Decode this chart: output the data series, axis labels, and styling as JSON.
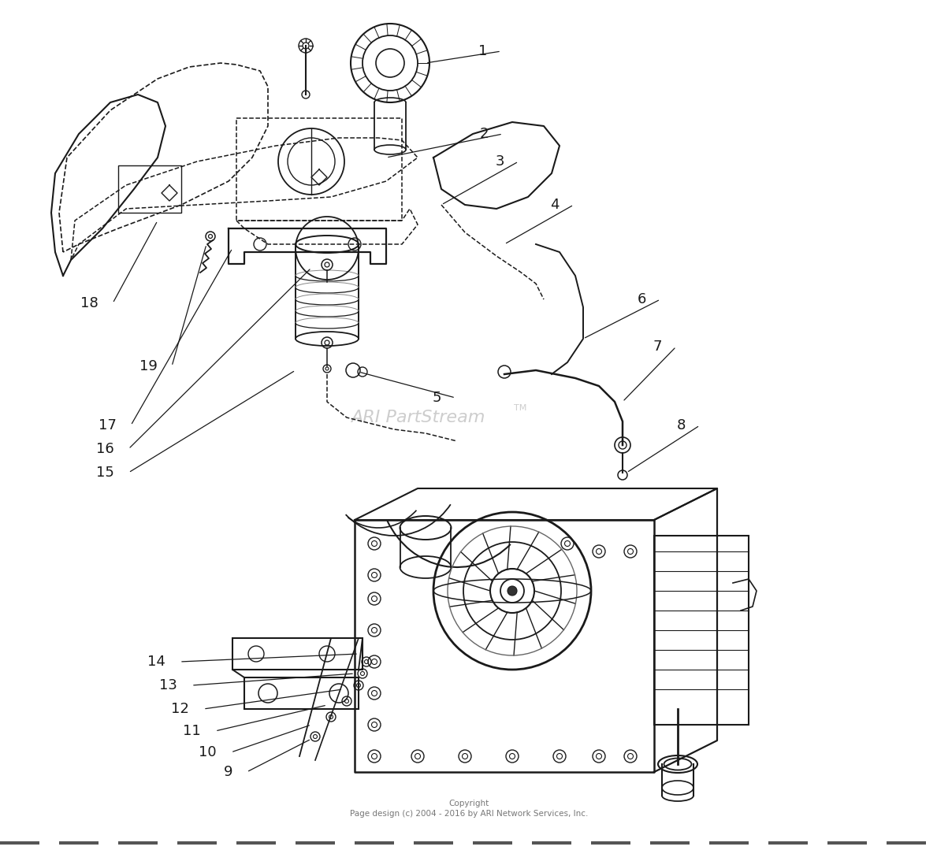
{
  "background_color": "#ffffff",
  "line_color": "#1a1a1a",
  "watermark_text": "ARI PartStream",
  "watermark_tm": "TM",
  "watermark_color": "#c8c8c8",
  "copyright_line1": "Copyright",
  "copyright_line2": "Page design (c) 2004 - 2016 by ARI Network Services, Inc.",
  "copyright_color": "#777777",
  "copyright_fontsize": 7.5,
  "watermark_fontsize": 16,
  "label_fontsize": 13,
  "lw": 1.1,
  "bottom_dash_color": "#555555"
}
